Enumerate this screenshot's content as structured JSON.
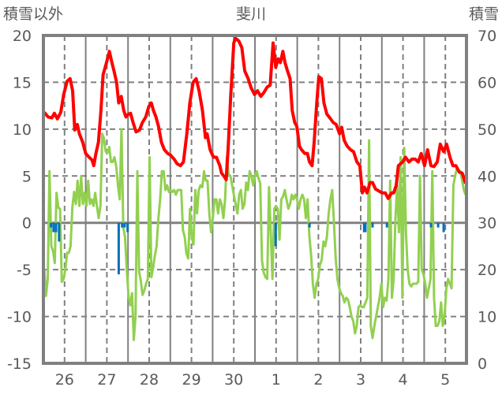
{
  "chart_data": {
    "type": "line",
    "title": "斐川",
    "ylabel": "積雪以外",
    "y2label": "積雪",
    "x_unit": "day offset from 26th",
    "xlim": [
      -0.5,
      9.5
    ],
    "ylim": [
      -15,
      20
    ],
    "y2lim": [
      0,
      70
    ],
    "yticks": [
      "20",
      "15",
      "10",
      "5",
      "0",
      "-5",
      "-10",
      "-15"
    ],
    "yticks_values": [
      20,
      15,
      10,
      5,
      0,
      -5,
      -10,
      -15
    ],
    "y2ticks": [
      "70",
      "60",
      "50",
      "40",
      "30",
      "20",
      "10",
      "0"
    ],
    "y2ticks_values": [
      70,
      60,
      50,
      40,
      30,
      20,
      10,
      0
    ],
    "xticks": [
      "26",
      "27",
      "28",
      "29",
      "30",
      "1",
      "2",
      "3",
      "4",
      "5"
    ],
    "xticks_values": [
      0,
      1,
      2,
      3,
      4,
      5,
      6,
      7,
      8,
      9
    ],
    "grid": true,
    "legend": "none",
    "series": [
      {
        "id": "red-line",
        "axis": "left",
        "color": "#ff0000",
        "x": [
          -0.48,
          -0.39,
          -0.3,
          -0.24,
          -0.17,
          -0.09,
          -0.02,
          0.06,
          0.13,
          0.19,
          0.24,
          0.3,
          0.35,
          0.43,
          0.5,
          0.58,
          0.65,
          0.69,
          0.74,
          0.8,
          0.86,
          0.91,
          0.99,
          1.06,
          1.12,
          1.17,
          1.23,
          1.28,
          1.34,
          1.4,
          1.45,
          1.51,
          1.56,
          1.62,
          1.69,
          1.77,
          1.84,
          1.92,
          1.99,
          2.05,
          2.1,
          2.16,
          2.22,
          2.29,
          2.36,
          2.44,
          2.51,
          2.59,
          2.66,
          2.74,
          2.81,
          2.89,
          2.96,
          3.04,
          3.11,
          3.18,
          3.26,
          3.33,
          3.37,
          3.44,
          3.52,
          3.59,
          3.67,
          3.71,
          3.78,
          3.82,
          3.87,
          3.93,
          4.0,
          4.04,
          4.12,
          4.19,
          4.26,
          4.34,
          4.41,
          4.49,
          4.56,
          4.64,
          4.71,
          4.79,
          4.86,
          4.93,
          4.99,
          5.05,
          5.1,
          5.16,
          5.21,
          5.27,
          5.33,
          5.38,
          5.44,
          5.49,
          5.55,
          5.6,
          5.68,
          5.74,
          5.79,
          5.85,
          5.9,
          5.96,
          6.01,
          6.07,
          6.13,
          6.2,
          6.27,
          6.35,
          6.42,
          6.5,
          6.55,
          6.61,
          6.68,
          6.76,
          6.83,
          6.91,
          6.98,
          7.04,
          7.09,
          7.15,
          7.22,
          7.28,
          7.35,
          7.43,
          7.5,
          7.58,
          7.65,
          7.73,
          7.78,
          7.84,
          7.89,
          7.99,
          8.06,
          8.14,
          8.21,
          8.29,
          8.36,
          8.43,
          8.51,
          8.58,
          8.66,
          8.73,
          8.81,
          8.88,
          8.96,
          9.03,
          9.11,
          9.18,
          9.25,
          9.33,
          9.4,
          9.48
        ],
        "values": [
          11.8,
          11.3,
          11.2,
          11.7,
          11.1,
          11.8,
          13.7,
          15.1,
          15.4,
          14.1,
          9.9,
          10.5,
          9.5,
          8.6,
          7.4,
          7.0,
          6.7,
          6.1,
          7.4,
          8.6,
          12.0,
          15.8,
          17.1,
          18.3,
          17.1,
          16.2,
          15.0,
          12.8,
          13.5,
          12.0,
          11.3,
          11.6,
          11.7,
          10.7,
          9.7,
          9.9,
          10.7,
          11.3,
          12.4,
          12.8,
          12.0,
          11.3,
          10.3,
          8.6,
          7.8,
          7.4,
          7.2,
          6.8,
          6.3,
          6.1,
          6.5,
          9.5,
          12.8,
          15.0,
          15.4,
          14.1,
          12.0,
          9.1,
          9.5,
          7.8,
          7.0,
          7.0,
          6.1,
          5.3,
          4.9,
          4.6,
          8.2,
          13.7,
          19.2,
          19.7,
          19.4,
          18.7,
          16.2,
          15.4,
          14.4,
          13.7,
          14.1,
          13.5,
          13.9,
          14.5,
          14.7,
          19.2,
          16.6,
          17.5,
          17.1,
          18.3,
          17.1,
          16.2,
          15.4,
          12.0,
          10.7,
          10.3,
          8.2,
          7.8,
          7.4,
          7.4,
          6.5,
          6.1,
          8.6,
          12.8,
          15.6,
          15.4,
          12.8,
          11.6,
          11.2,
          10.7,
          10.5,
          9.5,
          10.2,
          8.8,
          8.2,
          7.8,
          7.6,
          6.5,
          6.1,
          3.2,
          3.8,
          3.2,
          4.3,
          4.3,
          3.6,
          3.4,
          3.2,
          3.2,
          2.6,
          3.2,
          3.2,
          4.0,
          6.1,
          6.5,
          7.0,
          6.5,
          6.8,
          6.8,
          6.5,
          7.4,
          6.1,
          7.8,
          6.1,
          6.0,
          6.5,
          8.4,
          7.6,
          8.4,
          7.0,
          6.1,
          6.1,
          5.4,
          5.3,
          4.2
        ]
      },
      {
        "id": "green-line",
        "axis": "left",
        "color": "#92d050",
        "x_start": -0.48,
        "x_end": 9.48,
        "values": [
          -4.9,
          -7.8,
          -6,
          5.5,
          -2.5,
          -3,
          -4.3,
          3.2,
          1.6,
          1.5,
          -6.3,
          -6,
          -5,
          -3.2,
          -3.2,
          -2.5,
          1.7,
          3.3,
          2,
          4.5,
          1.8,
          5,
          2,
          3.2,
          1.8,
          4.5,
          2,
          2.5,
          1.8,
          3.2,
          1.8,
          0.5,
          1.8,
          9.5,
          9,
          7.6,
          7.5,
          8.1,
          6.5,
          6.5,
          7,
          6,
          4,
          2.5,
          10,
          -0.5,
          -1.5,
          -5,
          -7.8,
          -8.8,
          -7.5,
          -12.5,
          -10,
          5.5,
          -5.2,
          -6.2,
          -7.7,
          -7.2,
          -6.5,
          -6,
          7,
          -5.8,
          -4.8,
          -3.5,
          -2.5,
          0.5,
          2.5,
          5.5,
          5.5,
          3.5,
          4,
          3.3,
          3.5,
          3.3,
          3.5,
          3,
          3.5,
          3.5,
          3.5,
          -0.8,
          -1.5,
          -3.3,
          -3.8,
          1.5,
          -1.5,
          -2.3,
          3.5,
          1,
          3.5,
          4,
          3.8,
          5.5,
          4.5,
          4.5,
          1,
          -1,
          0.5,
          2.5,
          2.5,
          1,
          2.5,
          2,
          0.5,
          2.5,
          7,
          5.2,
          5,
          4,
          3,
          2,
          1,
          3,
          3.5,
          1.5,
          2,
          4.3,
          3.5,
          5.5,
          5,
          4,
          5,
          5.5,
          4.8,
          4.2,
          -4,
          -5.3,
          -5.8,
          -6,
          3.8,
          -1,
          -6,
          1.5,
          1.8,
          1.5,
          -1.8,
          2.5,
          2.8,
          3.5,
          2.5,
          1.5,
          2,
          3,
          2.5,
          3,
          2.5,
          1.5,
          2.5,
          3,
          2.5,
          0.5,
          2.5,
          -1.5,
          -3.5,
          -6.5,
          -8,
          -6.5,
          -6,
          -4.5,
          -4,
          -2,
          -2.5,
          -1.5,
          1,
          2.5,
          3.5,
          0,
          -3.8,
          -6,
          -7,
          -7.5,
          -7.8,
          -8.5,
          -8,
          -8.2,
          -9,
          -10,
          -10.5,
          -11.8,
          -11,
          -9,
          -8.8,
          -9,
          -9,
          -8.5,
          -8,
          8.8,
          -11,
          -12.3,
          -11,
          -10,
          -9,
          -8,
          -6.5,
          -9,
          -8,
          -8.3,
          -6,
          4.5,
          -8,
          -6,
          0.5,
          4,
          -1,
          7,
          -8,
          8,
          -1,
          -5,
          -6.5,
          -6.8,
          -6.5,
          -6.5,
          -6.5,
          -6.3,
          5,
          -5,
          -5.5,
          -6.5,
          -8,
          -7,
          -6,
          5.5,
          -8,
          -11,
          -11,
          -10.5,
          -8.5,
          -11,
          -10,
          -7,
          -6,
          -6.5,
          -7,
          4,
          5,
          5.8,
          5.5,
          5.5,
          4.5,
          3.5,
          3
        ]
      },
      {
        "id": "blue-bars",
        "axis": "left",
        "type": "bar",
        "color": "#0070c0",
        "x": [
          -0.32,
          -0.26,
          -0.2,
          -0.13,
          1.28,
          1.36,
          1.42,
          1.49,
          4.99,
          5.79,
          7.08,
          7.11,
          7.28,
          7.62,
          8.66,
          8.83,
          8.96
        ],
        "values": [
          -0.5,
          -1,
          -1,
          -2,
          -5.5,
          -0.5,
          -0.5,
          -1,
          -2.5,
          -0.5,
          -1,
          -1,
          -0.5,
          -0.5,
          -0.5,
          -0.5,
          -1
        ]
      },
      {
        "id": "purple-line",
        "axis": "right",
        "color": "#7030a0",
        "x": [
          5.05,
          9.48
        ],
        "values": [
          0,
          0
        ]
      }
    ]
  }
}
